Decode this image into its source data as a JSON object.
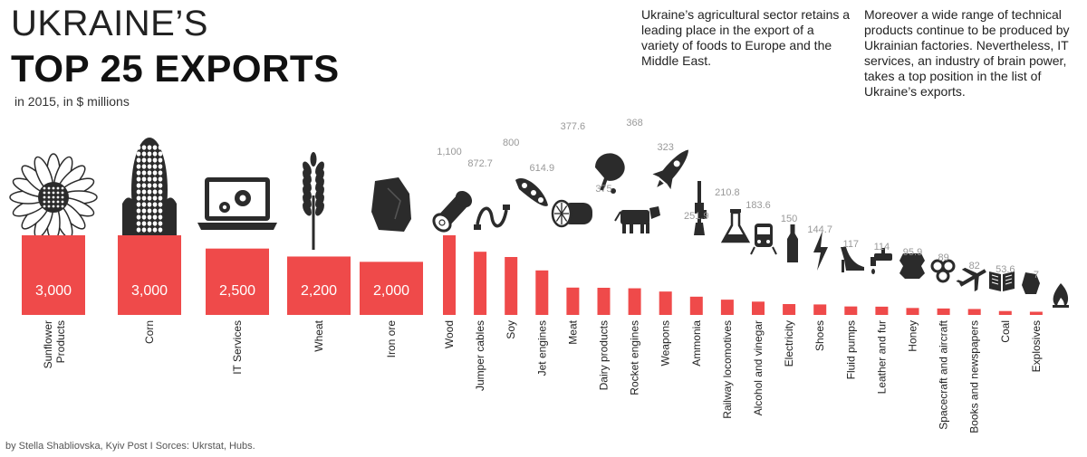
{
  "header": {
    "title_line1": "UKRAINE’S",
    "title_line2": "TOP 25 EXPORTS",
    "subtitle": "in 2015, in $ millions"
  },
  "notes": {
    "para1": "Ukraine’s agricultural sector retains a leading place in the export of a variety of foods to Europe and the Middle East.",
    "para2": "Moreover a wide range of technical products continue to be produced by Ukrainian factories. Nevertheless, IT services, an industry of brain power, takes a top position in the list of Ukraine’s exports."
  },
  "footer": "by Stella Shabliovska, Kyiv Post  I  Sorces: Ukrstat, Hubs.",
  "colors": {
    "bar": "#ef4a4a",
    "icon": "#2b2b2b",
    "value_label": "#999999"
  },
  "chart_data": {
    "type": "bar",
    "title": "TOP 25 EXPORTS",
    "categories": [
      "Sunflower Products",
      "Corn",
      "IT Services",
      "Wheat",
      "Iron ore",
      "Wood",
      "Jumper cables",
      "Soy",
      "Jet engines",
      "Meat",
      "Dairy products",
      "Rocket engines",
      "Weapons",
      "Ammonia",
      "Railway locomotives",
      "Alcohol and vinegar",
      "Electricity",
      "Shoes",
      "Fluid pumps",
      "Leather and fur",
      "Honey",
      "Spacecraft and aircraft",
      "Books and newspapers",
      "Coal",
      "Explosives"
    ],
    "values": [
      3000,
      3000,
      2500,
      2200,
      2000,
      1100,
      872.7,
      800,
      614.9,
      377.6,
      375,
      368,
      323,
      251.9,
      210.8,
      183.6,
      150,
      144.7,
      117,
      114,
      95.9,
      89,
      82,
      53.6,
      7
    ],
    "value_labels": [
      "3,000",
      "3,000",
      "2,500",
      "2,200",
      "2,000",
      "1,100",
      "872.7",
      "800",
      "614.9",
      "377.6",
      "375",
      "368",
      "323",
      "251.9",
      "210.8",
      "183.6",
      "150",
      "144.7",
      "117",
      "114",
      "95.9",
      "89",
      "82",
      "53.6",
      "7"
    ],
    "icons": [
      "sunflower-icon",
      "corn-icon",
      "laptop-gear-icon",
      "wheat-icon",
      "ore-rock-icon",
      "log-icon",
      "cable-icon",
      "soy-pod-icon",
      "jet-engine-icon",
      "meat-ham-icon",
      "cow-icon",
      "rocket-icon",
      "rifle-icon",
      "flask-icon",
      "train-icon",
      "bottle-icon",
      "lightning-icon",
      "high-heel-icon",
      "faucet-icon",
      "hide-icon",
      "honeycomb-icon",
      "airplane-icon",
      "book-icon",
      "coal-icon",
      "flame-icon"
    ],
    "xlabel": "",
    "ylabel": ""
  }
}
